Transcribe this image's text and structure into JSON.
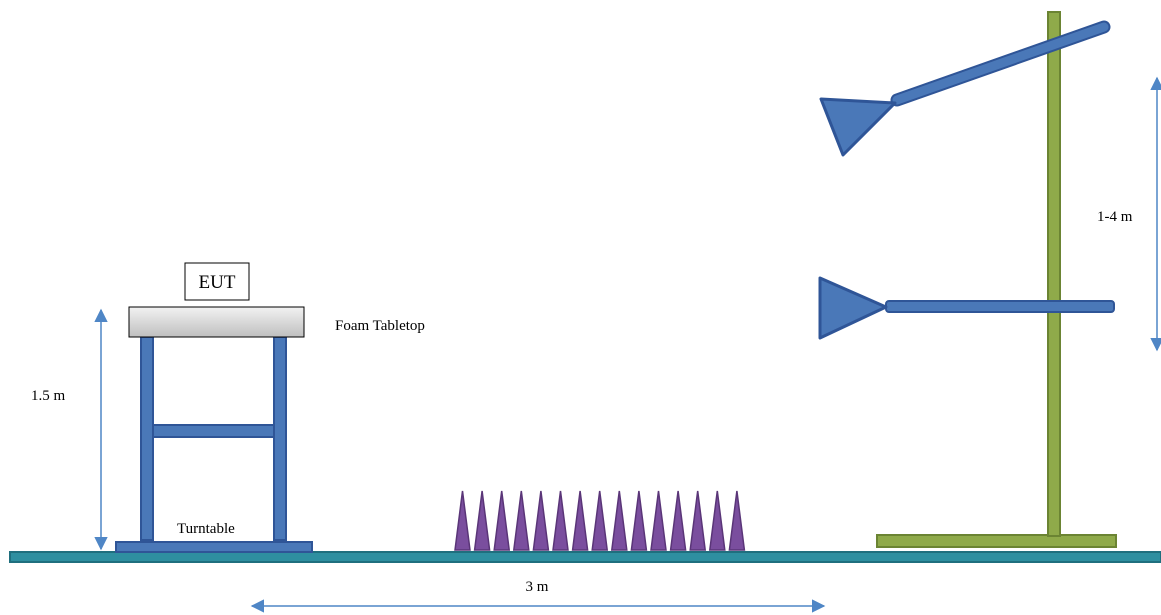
{
  "labels": {
    "eut": "EUT",
    "tabletop": "Foam Tabletop",
    "table_height": "1.5 m",
    "turntable": "Turntable",
    "distance": "3 m",
    "antenna_height": "1-4 m"
  },
  "colors": {
    "structure_blue": "#4a78b8",
    "structure_blue_dark": "#2f5597",
    "mast_green": "#8faa4a",
    "mast_green_dark": "#6b8433",
    "ground": "#2e8fa0",
    "absorber": "#7a4e9e",
    "absorber_dark": "#5a3578",
    "arrow": "#4f86c6",
    "tabletop_fill": "#d9d9d9"
  },
  "absorber_count": 15
}
